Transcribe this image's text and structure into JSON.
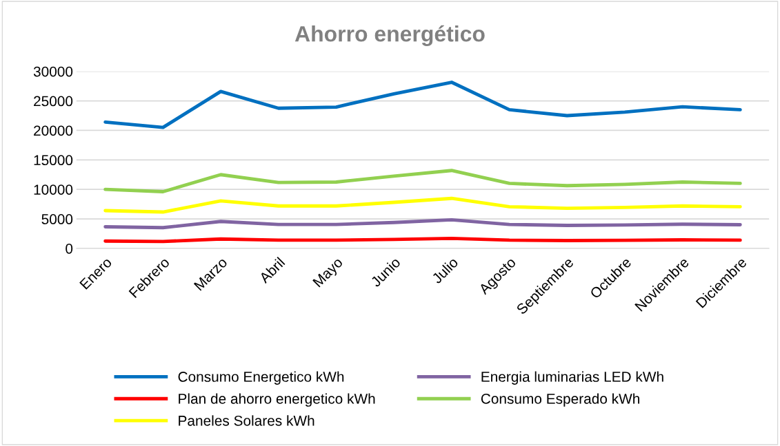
{
  "chart_data": {
    "type": "line",
    "title": "Ahorro energético",
    "categories": [
      "Enero",
      "Febrero",
      "Marzo",
      "Abril",
      "Mayo",
      "Junio",
      "Julio",
      "Agosto",
      "Septiembre",
      "Octubre",
      "Noviembre",
      "Diciembre"
    ],
    "series": [
      {
        "name": "Consumo Energetico kWh",
        "color": "#0070c0",
        "values": [
          21400,
          20500,
          26600,
          23750,
          23950,
          26200,
          28150,
          23500,
          22500,
          23100,
          24000,
          23500
        ]
      },
      {
        "name": "Plan de ahorro energetico kWh",
        "color": "#ff0000",
        "values": [
          1250,
          1170,
          1600,
          1400,
          1400,
          1520,
          1700,
          1400,
          1330,
          1370,
          1450,
          1400
        ]
      },
      {
        "name": "Paneles Solares kWh",
        "color": "#ffff00",
        "values": [
          6400,
          6170,
          8050,
          7190,
          7190,
          7800,
          8480,
          7070,
          6800,
          6950,
          7190,
          7070
        ]
      },
      {
        "name": "Energia luminarias LED kWh",
        "color": "#8064a2",
        "values": [
          3670,
          3520,
          4570,
          4060,
          4060,
          4400,
          4840,
          4060,
          3900,
          3980,
          4100,
          4020
        ]
      },
      {
        "name": "Consumo Esperado kWh",
        "color": "#92d050",
        "values": [
          10000,
          9610,
          12500,
          11170,
          11250,
          12250,
          13200,
          11020,
          10630,
          10860,
          11250,
          11020
        ]
      }
    ],
    "ylim": [
      0,
      30000
    ],
    "yticks": [
      0,
      5000,
      10000,
      15000,
      20000,
      25000,
      30000
    ],
    "grid": "y",
    "legend": "bottom",
    "marker": "none",
    "line_style": "solid"
  }
}
